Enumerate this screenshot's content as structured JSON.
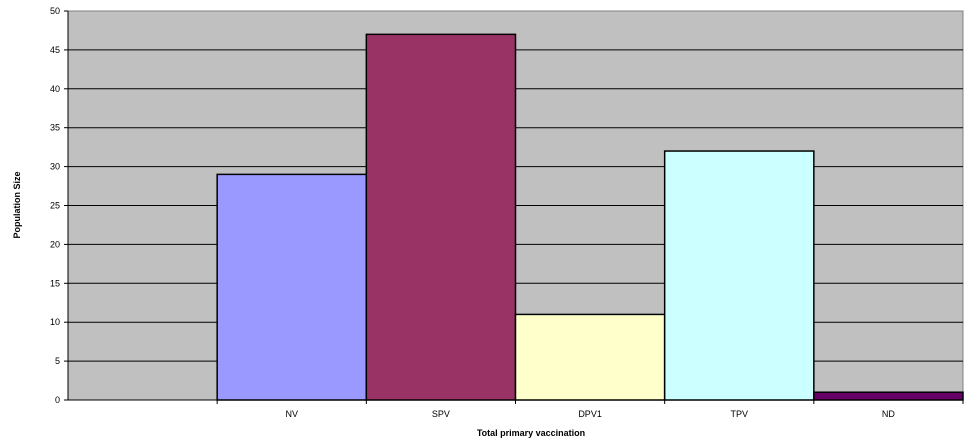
{
  "chart_data": {
    "type": "bar",
    "categories": [
      "",
      "NV",
      "SPV",
      "DPV1",
      "TPV",
      "ND"
    ],
    "values": [
      null,
      29,
      47,
      11,
      32,
      1
    ],
    "colors": [
      "",
      "#9999ff",
      "#993366",
      "#ffffcc",
      "#ccffff",
      "#660066"
    ],
    "title": "",
    "xlabel": "Total primary vaccination",
    "ylabel": "Population Size",
    "ylim": [
      0,
      50
    ],
    "yticks": [
      0,
      5,
      10,
      15,
      20,
      25,
      30,
      35,
      40,
      45,
      50
    ],
    "plot_background": "#c0c0c0",
    "grid": true,
    "legend": "none"
  }
}
